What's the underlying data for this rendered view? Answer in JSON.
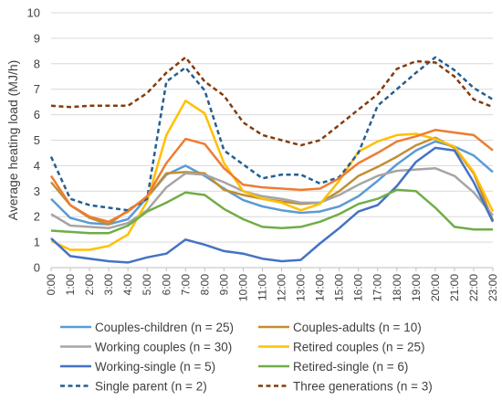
{
  "chart_data": {
    "type": "line",
    "title": "",
    "xlabel": "",
    "ylabel": "Average heating load (MJ/h)",
    "ylim": [
      0,
      10
    ],
    "yticks": [
      0,
      1,
      2,
      3,
      4,
      5,
      6,
      7,
      8,
      9,
      10
    ],
    "grid": "horizontal",
    "legend_position": "bottom",
    "x": [
      "0:00",
      "1:00",
      "2:00",
      "3:00",
      "4:00",
      "5:00",
      "6:00",
      "7:00",
      "8:00",
      "9:00",
      "10:00",
      "11:00",
      "12:00",
      "13:00",
      "14:00",
      "15:00",
      "16:00",
      "17:00",
      "18:00",
      "19:00",
      "20:00",
      "21:00",
      "22:00",
      "23:00"
    ],
    "series": [
      {
        "name": "Couples-children (n = 25)",
        "color": "#5B9BD5",
        "dash": "solid",
        "values": [
          2.7,
          1.95,
          1.75,
          1.7,
          1.9,
          2.75,
          3.65,
          4.0,
          3.6,
          3.1,
          2.65,
          2.4,
          2.25,
          2.15,
          2.2,
          2.4,
          2.8,
          3.4,
          4.05,
          4.6,
          4.95,
          4.75,
          4.4,
          3.75
        ]
      },
      {
        "name": "Couples-adults (n = 10)",
        "color": "#C28E34",
        "dash": "solid",
        "values": [
          3.35,
          2.45,
          1.95,
          1.7,
          2.25,
          2.75,
          3.7,
          3.75,
          3.7,
          3.05,
          2.85,
          2.7,
          2.6,
          2.5,
          2.55,
          3.0,
          3.6,
          3.95,
          4.35,
          4.8,
          5.1,
          4.7,
          3.7,
          1.85
        ]
      },
      {
        "name": "Working couples (n = 30)",
        "color": "#A5A5A5",
        "dash": "solid",
        "values": [
          2.1,
          1.65,
          1.6,
          1.55,
          1.75,
          2.25,
          3.15,
          3.7,
          3.65,
          3.35,
          3.0,
          2.8,
          2.7,
          2.55,
          2.55,
          2.85,
          3.25,
          3.6,
          3.8,
          3.85,
          3.9,
          3.6,
          2.95,
          2.05
        ]
      },
      {
        "name": "Retired couples (n = 25)",
        "color": "#FFC000",
        "dash": "solid",
        "values": [
          1.05,
          0.7,
          0.7,
          0.85,
          1.3,
          2.6,
          5.2,
          6.55,
          6.05,
          4.1,
          3.0,
          2.7,
          2.55,
          2.25,
          2.5,
          3.4,
          4.55,
          4.95,
          5.2,
          5.25,
          5.05,
          4.75,
          3.75,
          2.2
        ]
      },
      {
        "name": "Working-single (n = 5)",
        "color": "#4472C4",
        "dash": "solid",
        "values": [
          1.15,
          0.45,
          0.35,
          0.25,
          0.2,
          0.4,
          0.55,
          1.1,
          0.9,
          0.65,
          0.55,
          0.35,
          0.25,
          0.3,
          0.95,
          1.55,
          2.2,
          2.45,
          3.2,
          4.15,
          4.7,
          4.6,
          3.35,
          1.8
        ]
      },
      {
        "name": "Retired-single (n = 6)",
        "color": "#70AD47",
        "dash": "solid",
        "values": [
          1.45,
          1.4,
          1.35,
          1.35,
          1.65,
          2.2,
          2.55,
          2.95,
          2.85,
          2.3,
          1.9,
          1.6,
          1.55,
          1.6,
          1.8,
          2.1,
          2.5,
          2.7,
          3.05,
          3.0,
          2.35,
          1.6,
          1.5,
          1.5
        ]
      },
      {
        "name": "Single parent (n = 2)",
        "color": "#255E91",
        "dash": "dashed",
        "values": [
          4.35,
          2.7,
          2.45,
          2.35,
          2.25,
          2.7,
          7.3,
          7.85,
          6.95,
          4.6,
          4.05,
          3.5,
          3.65,
          3.65,
          3.3,
          3.55,
          4.5,
          6.35,
          7.0,
          7.65,
          8.25,
          7.75,
          7.05,
          6.6
        ]
      },
      {
        "name": "Three generations (n = 3)",
        "color": "#843C0C",
        "dash": "dashed",
        "values": [
          6.35,
          6.3,
          6.35,
          6.35,
          6.35,
          6.85,
          7.65,
          8.25,
          7.3,
          6.75,
          5.7,
          5.2,
          5.0,
          4.8,
          5.0,
          5.6,
          6.2,
          6.8,
          7.8,
          8.1,
          8.05,
          7.5,
          6.6,
          6.3
        ]
      },
      {
        "name": "",
        "color": "#ED7D31",
        "dash": "solid",
        "values": [
          3.6,
          2.45,
          2.0,
          1.8,
          2.2,
          2.8,
          4.1,
          5.05,
          4.85,
          3.9,
          3.25,
          3.15,
          3.1,
          3.05,
          3.1,
          3.5,
          4.1,
          4.5,
          4.95,
          5.15,
          5.4,
          5.3,
          5.2,
          4.6
        ]
      }
    ]
  }
}
